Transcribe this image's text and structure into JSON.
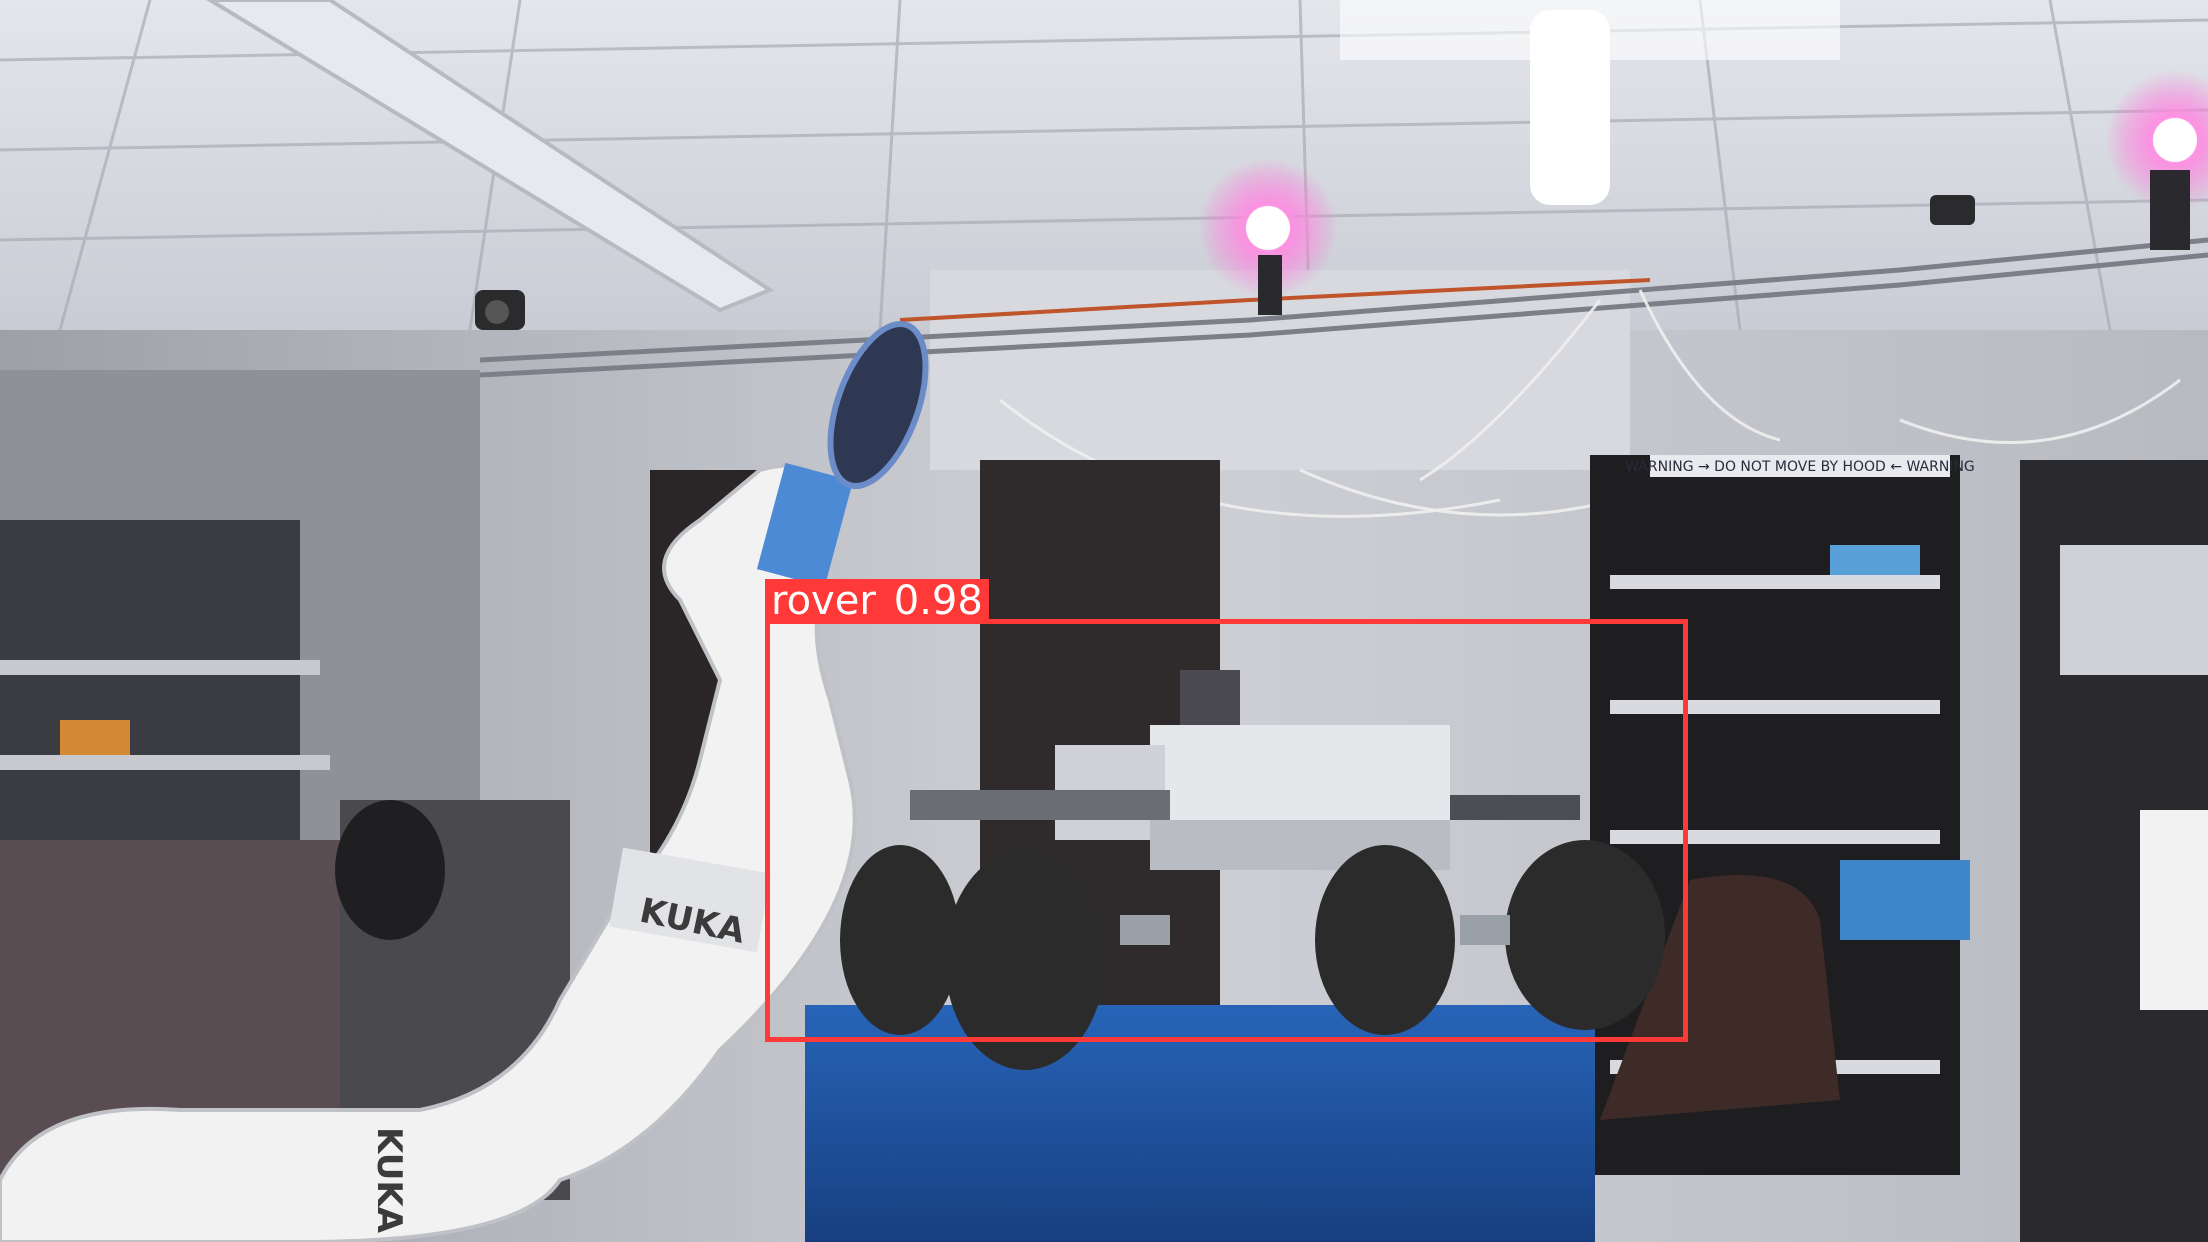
{
  "detection": {
    "class_label": "rover",
    "confidence": "0.98",
    "box_color": "#ff3838"
  },
  "robot_arm": {
    "brand_mark_upper": "KUKA",
    "brand_mark_lower": "KUKA"
  },
  "signage": {
    "shelf_warning": "WARNING → DO NOT MOVE BY HOOD ← WARNING"
  },
  "colors": {
    "ceiling": "#d6d8de",
    "wall": "#c9cbd1",
    "pedestal": "#1f5aa8",
    "robot_arm": "#f2f2f2",
    "rover_body": "#e6e7ea",
    "tires": "#2b2b2b",
    "lamp_glow": "#ff6fd8"
  }
}
